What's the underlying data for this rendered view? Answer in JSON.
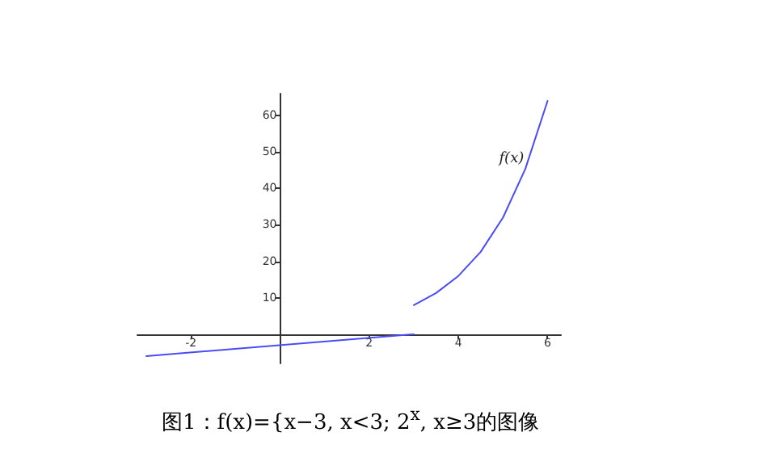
{
  "chart_data": {
    "type": "line",
    "marker": "none",
    "grid": false,
    "xlim": [
      -3.2,
      6.3
    ],
    "ylim": [
      -8,
      66
    ],
    "xticks": [
      -2,
      2,
      4,
      6
    ],
    "yticks": [
      10,
      20,
      30,
      40,
      50,
      60
    ],
    "series": [
      {
        "color": "#4b4bf5",
        "x": [
          -3,
          3
        ],
        "values": [
          -6,
          0
        ]
      },
      {
        "name": "f(x)",
        "color": "#4b4bf5",
        "x": [
          3,
          3.5,
          4,
          4.5,
          5,
          5.5,
          6
        ],
        "values": [
          8,
          11.3,
          16,
          22.6,
          32,
          45.3,
          64
        ]
      }
    ],
    "annotations": [
      "图1：f(x)={x−3,  x<3;  2$^{x}$,  x≥3的图像"
    ]
  }
}
